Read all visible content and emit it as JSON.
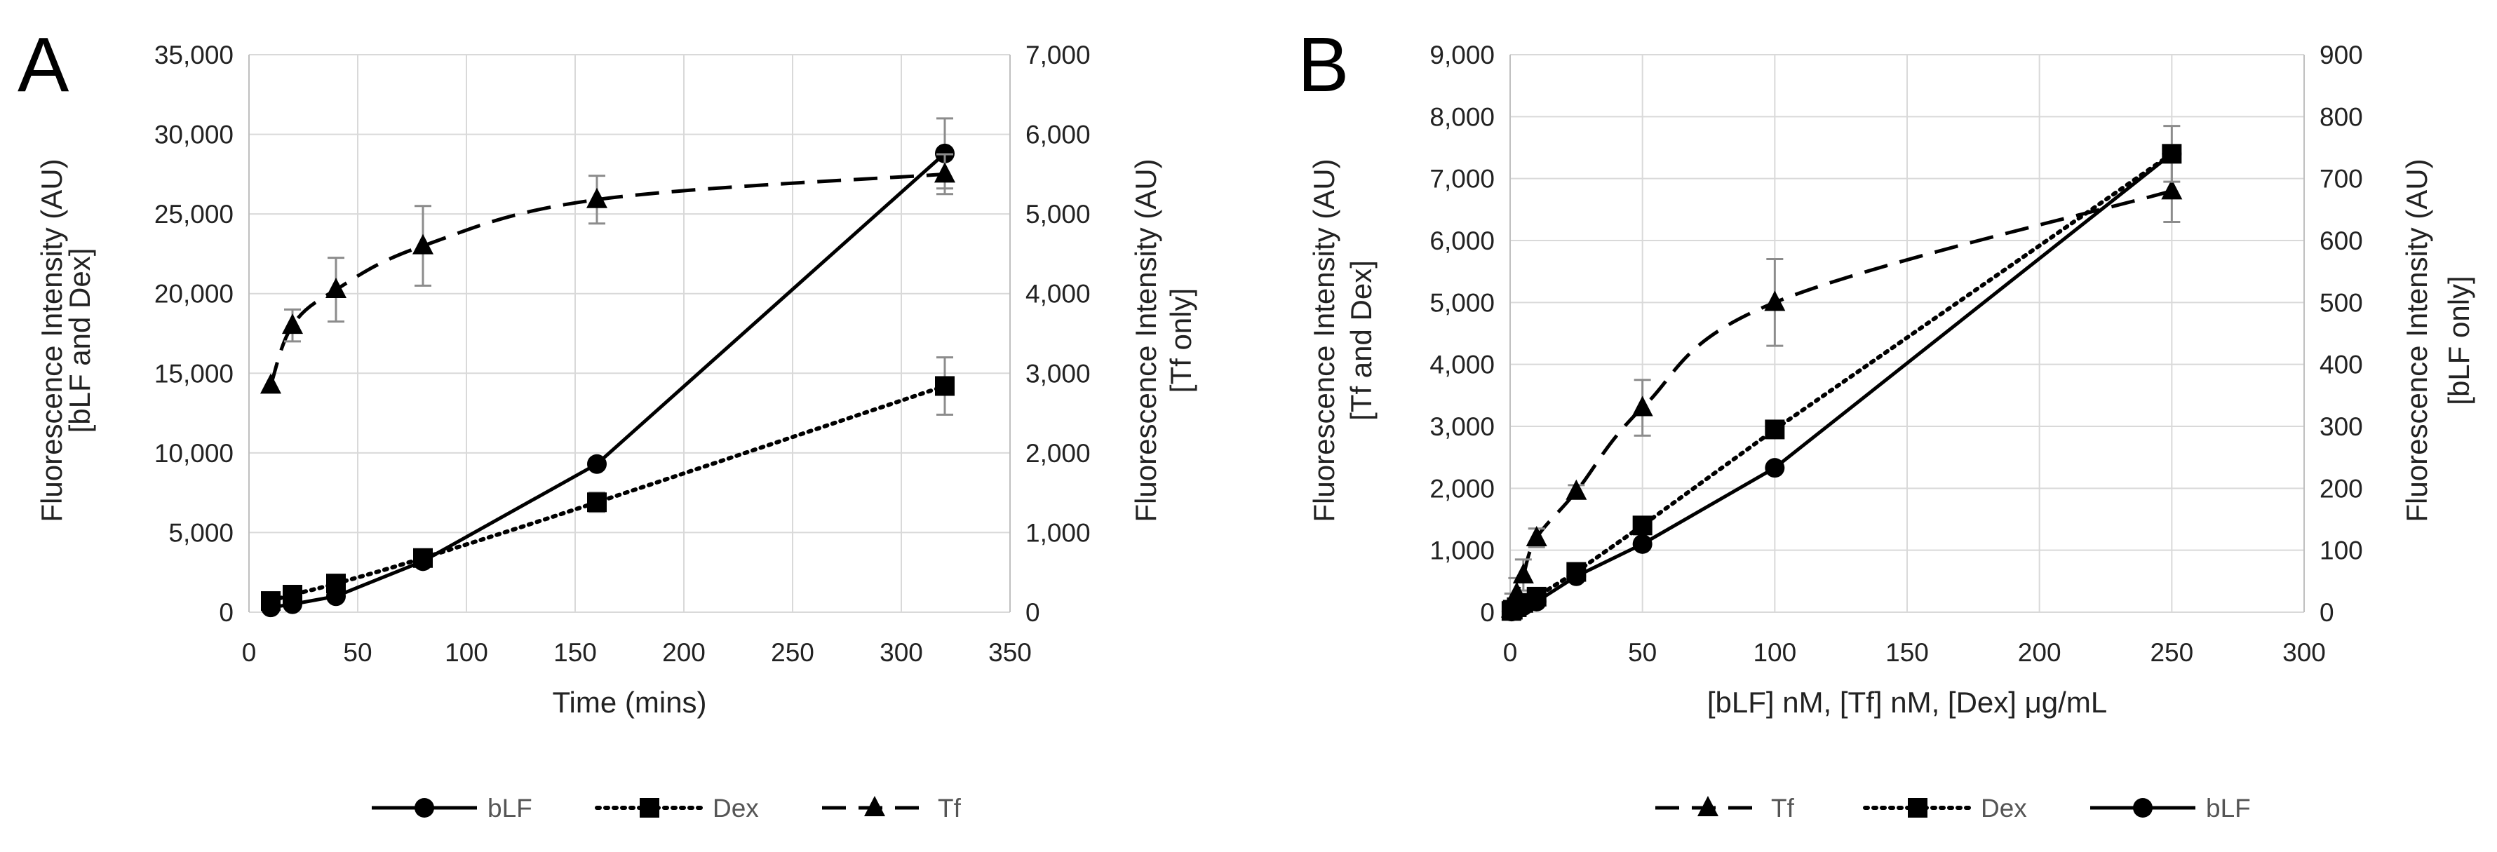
{
  "chart_data": [
    {
      "panel": "A",
      "type": "line",
      "xlabel": "Time (mins)",
      "xlim": [
        0,
        350
      ],
      "xticks": [
        0,
        50,
        100,
        150,
        200,
        250,
        300,
        350
      ],
      "ylabel_left": [
        "Fluorescence Intensity (AU)",
        "[bLF and Dex]"
      ],
      "ylim_left": [
        0,
        35000
      ],
      "yticks_left": [
        0,
        5000,
        10000,
        15000,
        20000,
        25000,
        30000,
        35000
      ],
      "ylabel_right": [
        "Fluorescence Intensity (AU)",
        "[Tf only]"
      ],
      "ylim_right": [
        0,
        7000
      ],
      "yticks_right": [
        0,
        1000,
        2000,
        3000,
        4000,
        5000,
        6000,
        7000
      ],
      "grid": true,
      "legend_position": "bottom",
      "legend_order": [
        "bLF",
        "Dex",
        "Tf"
      ],
      "series": [
        {
          "name": "bLF",
          "axis": "left",
          "marker": "circle",
          "dash": "solid",
          "x": [
            10,
            20,
            40,
            80,
            160,
            320
          ],
          "y": [
            300,
            500,
            1000,
            3200,
            9300,
            28800
          ],
          "err": [
            0,
            0,
            0,
            0,
            0,
            2200
          ]
        },
        {
          "name": "Dex",
          "axis": "left",
          "marker": "square",
          "dash": "dotted",
          "smooth": true,
          "x": [
            10,
            20,
            40,
            80,
            160,
            320
          ],
          "y": [
            700,
            1100,
            1800,
            3400,
            6900,
            14200
          ],
          "err": [
            0,
            0,
            0,
            0,
            600,
            1800
          ]
        },
        {
          "name": "Tf",
          "axis": "right",
          "marker": "triangle",
          "dash": "dashed",
          "smooth": true,
          "x": [
            10,
            20,
            40,
            80,
            160,
            320
          ],
          "y": [
            2850,
            3600,
            4050,
            4600,
            5180,
            5500
          ],
          "err": [
            0,
            200,
            400,
            500,
            300,
            250
          ]
        }
      ]
    },
    {
      "panel": "B",
      "type": "line",
      "xlabel": "[bLF] nM, [Tf] nM, [Dex] μg/mL",
      "xlim": [
        0,
        300
      ],
      "xticks": [
        0,
        50,
        100,
        150,
        200,
        250,
        300
      ],
      "ylabel_left": [
        "Fluorescence Intensity (AU)",
        "[Tf and Dex]"
      ],
      "ylim_left": [
        0,
        9000
      ],
      "yticks_left": [
        0,
        1000,
        2000,
        3000,
        4000,
        5000,
        6000,
        7000,
        8000,
        9000
      ],
      "ylabel_right": [
        "Fluorescence Intensity (AU)",
        "[bLF only]"
      ],
      "ylim_right": [
        0,
        900
      ],
      "yticks_right": [
        0,
        100,
        200,
        300,
        400,
        500,
        600,
        700,
        800,
        900
      ],
      "grid": true,
      "legend_position": "bottom",
      "legend_order": [
        "Tf",
        "Dex",
        "bLF"
      ],
      "series": [
        {
          "name": "Tf",
          "axis": "left",
          "marker": "triangle",
          "dash": "dashed",
          "smooth": true,
          "x": [
            0.5,
            1,
            2.5,
            5,
            10,
            25,
            50,
            100,
            250
          ],
          "y": [
            50,
            150,
            300,
            600,
            1200,
            1950,
            3300,
            5000,
            6800
          ],
          "err": [
            0,
            150,
            250,
            250,
            150,
            100,
            450,
            700,
            500
          ]
        },
        {
          "name": "Dex",
          "axis": "left",
          "marker": "square",
          "dash": "dotted",
          "x": [
            0.5,
            1,
            2.5,
            5,
            10,
            25,
            50,
            100,
            250
          ],
          "y": [
            20,
            40,
            80,
            150,
            250,
            650,
            1400,
            2950,
            7400
          ],
          "err": [
            0,
            0,
            0,
            0,
            0,
            0,
            0,
            0,
            0
          ]
        },
        {
          "name": "bLF",
          "axis": "right",
          "marker": "circle",
          "dash": "solid",
          "x": [
            0.5,
            1,
            2.5,
            5,
            10,
            25,
            50,
            100,
            250
          ],
          "y": [
            1,
            3,
            6,
            10,
            17,
            58,
            110,
            233,
            740
          ],
          "err": [
            0,
            0,
            0,
            0,
            0,
            0,
            0,
            0,
            45
          ]
        }
      ]
    }
  ],
  "panels": {
    "A": {
      "letter": "A"
    },
    "B": {
      "letter": "B"
    }
  }
}
